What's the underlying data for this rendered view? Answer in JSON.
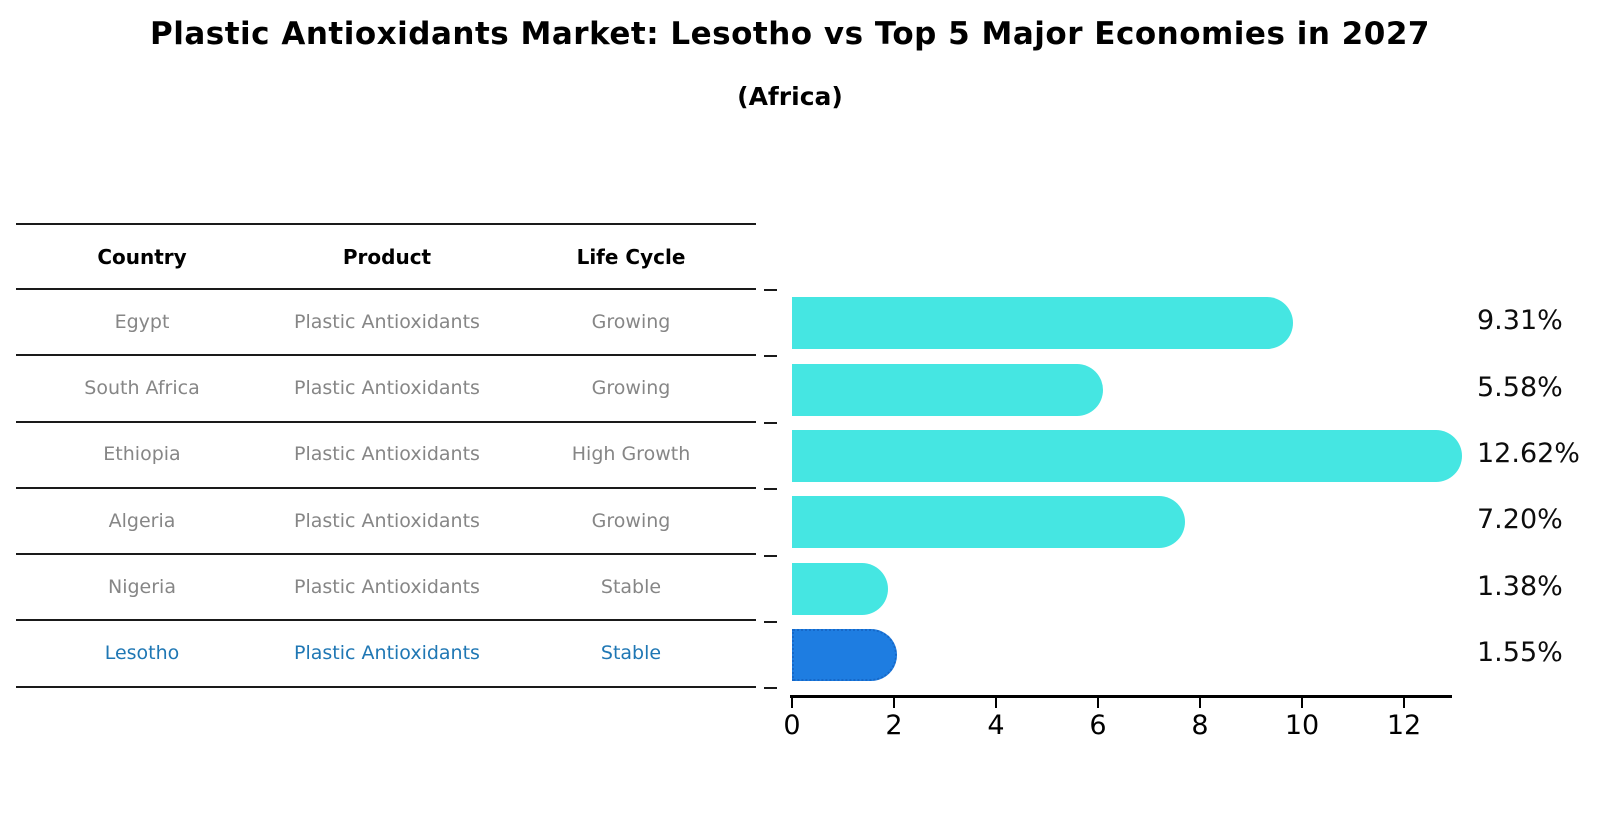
{
  "title": "Plastic Antioxidants Market: Lesotho vs Top 5 Major Economies in 2027",
  "subtitle": "(Africa)",
  "table": {
    "headers": [
      "Country",
      "Product",
      "Life Cycle"
    ],
    "rows": [
      {
        "country": "Egypt",
        "product": "Plastic Antioxidants",
        "life_cycle": "Growing",
        "highlight": false
      },
      {
        "country": "South Africa",
        "product": "Plastic Antioxidants",
        "life_cycle": "Growing",
        "highlight": false
      },
      {
        "country": "Ethiopia",
        "product": "Plastic Antioxidants",
        "life_cycle": "High Growth",
        "highlight": false
      },
      {
        "country": "Algeria",
        "product": "Plastic Antioxidants",
        "life_cycle": "Growing",
        "highlight": false
      },
      {
        "country": "Nigeria",
        "product": "Plastic Antioxidants",
        "life_cycle": "Stable",
        "highlight": false
      },
      {
        "country": "Lesotho",
        "product": "Plastic Antioxidants",
        "life_cycle": "Stable",
        "highlight": true
      }
    ]
  },
  "chart_data": {
    "type": "bar",
    "orientation": "horizontal",
    "title": "Plastic Antioxidants Market: Lesotho vs Top 5 Major Economies in 2027 (Africa)",
    "categories": [
      "Egypt",
      "South Africa",
      "Ethiopia",
      "Algeria",
      "Nigeria",
      "Lesotho"
    ],
    "values": [
      9.31,
      5.58,
      12.62,
      7.2,
      1.38,
      1.55
    ],
    "value_labels": [
      "9.31%",
      "5.58%",
      "12.62%",
      "7.20%",
      "1.38%",
      "1.55%"
    ],
    "xlabel": "",
    "ylabel": "",
    "xticks": [
      0,
      2,
      4,
      6,
      8,
      10,
      12
    ],
    "xlim": [
      0,
      13
    ],
    "grid": false,
    "legend": false,
    "highlight_index": 5
  },
  "colors": {
    "bar": "#45e6e2",
    "highlight_bar": "#1e7de1",
    "highlight_bar_edge": "#1668c8",
    "highlight_text": "#1f77b4",
    "table_text": "#868686",
    "header_text": "#000000",
    "rule": "#1a1a1a",
    "highlight_bg": "#fbf7e4"
  }
}
